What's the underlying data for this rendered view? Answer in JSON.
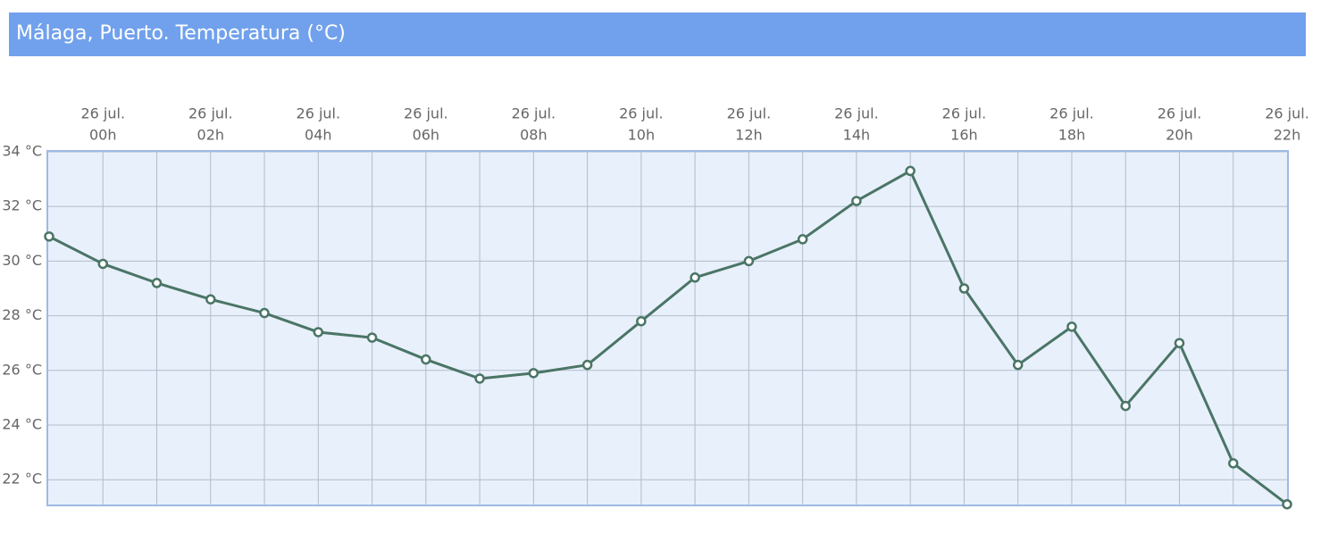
{
  "chart_data": {
    "type": "line",
    "title": "Málaga, Puerto. Temperatura (°C)",
    "categories": [
      null,
      [
        "26 jul.",
        "00h"
      ],
      null,
      [
        "26 jul.",
        "02h"
      ],
      null,
      [
        "26 jul.",
        "04h"
      ],
      null,
      [
        "26 jul.",
        "06h"
      ],
      null,
      [
        "26 jul.",
        "08h"
      ],
      null,
      [
        "26 jul.",
        "10h"
      ],
      null,
      [
        "26 jul.",
        "12h"
      ],
      null,
      [
        "26 jul.",
        "14h"
      ],
      null,
      [
        "26 jul.",
        "16h"
      ],
      null,
      [
        "26 jul.",
        "18h"
      ],
      null,
      [
        "26 jul.",
        "20h"
      ],
      null,
      [
        "26 jul.",
        "22h"
      ]
    ],
    "values": [
      30.9,
      29.9,
      29.2,
      28.6,
      28.1,
      27.4,
      27.2,
      26.4,
      25.7,
      25.9,
      26.2,
      27.8,
      29.4,
      30.0,
      30.8,
      32.2,
      33.3,
      29.0,
      26.2,
      27.6,
      24.7,
      27.0,
      22.6,
      21.1
    ],
    "color": "#4a7566",
    "ylim": [
      21,
      34
    ],
    "yticks": [
      {
        "value": 22,
        "label": "22 °C"
      },
      {
        "value": 24,
        "label": "24 °C"
      },
      {
        "value": 26,
        "label": "26 °C"
      },
      {
        "value": 28,
        "label": "28 °C"
      },
      {
        "value": 30,
        "label": "30 °C"
      },
      {
        "value": 32,
        "label": "32 °C"
      },
      {
        "value": 34,
        "label": "34 °C"
      }
    ],
    "grid": true
  }
}
